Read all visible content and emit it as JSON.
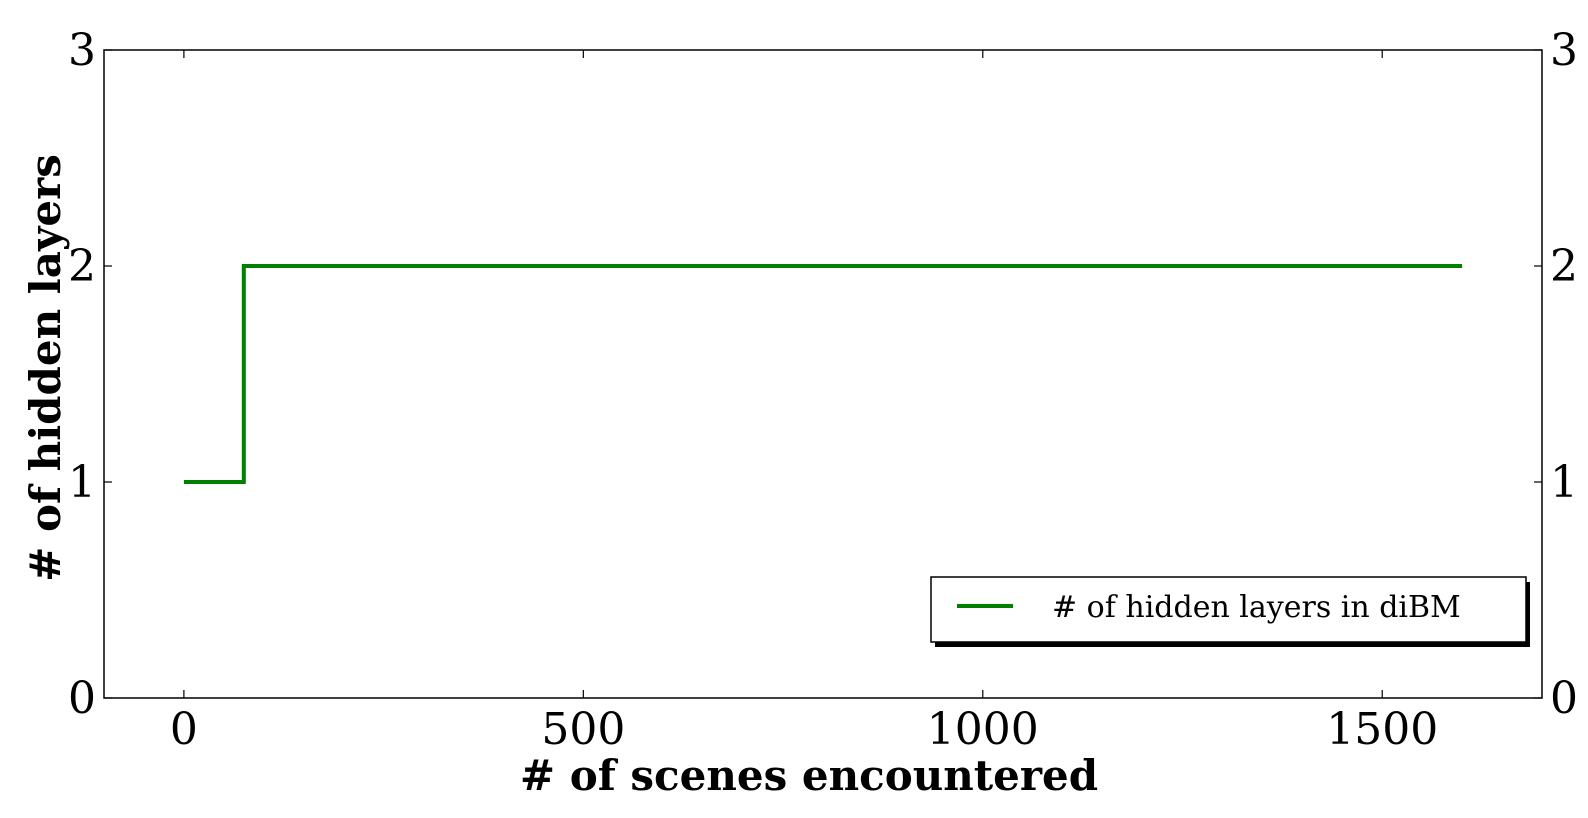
{
  "chart_data": {
    "type": "line",
    "xlabel": "# of scenes encountered",
    "ylabel": "# of hidden layers",
    "xlim": [
      -100,
      1700
    ],
    "ylim": [
      0,
      3
    ],
    "x_ticks": [
      0,
      500,
      1000,
      1500
    ],
    "x_tick_labels": [
      "0",
      "500",
      "1000",
      "1500"
    ],
    "y_ticks": [
      0,
      1,
      2,
      3
    ],
    "y_tick_labels": [
      "0",
      "1",
      "2",
      "3"
    ],
    "right_y_tick_labels": [
      "0",
      "1",
      "2",
      "3"
    ],
    "grid": false,
    "legend_position": "lower-right",
    "series": [
      {
        "name": "# of hidden layers in diBM",
        "color": "#008000",
        "step": true,
        "x": [
          0,
          75,
          75,
          1600
        ],
        "y": [
          1,
          1,
          2,
          2
        ]
      }
    ]
  }
}
